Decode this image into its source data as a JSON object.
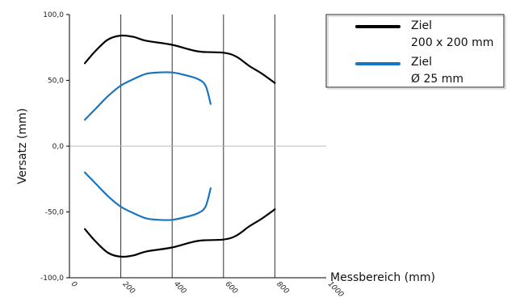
{
  "chart_data": {
    "type": "line",
    "title": "",
    "xlabel": "Messbereich (mm)",
    "ylabel": "Versatz (mm)",
    "xlim": [
      0,
      1000
    ],
    "ylim": [
      -100,
      100
    ],
    "x_ticks": [
      0,
      200,
      400,
      600,
      800,
      1000
    ],
    "y_ticks": [
      -100,
      -50,
      0,
      50,
      100
    ],
    "y_tick_labels": [
      "-100,0",
      "-50,0",
      "0,0",
      "50,0",
      "100,0"
    ],
    "x_tick_labels": [
      "0",
      "200",
      "400",
      "600",
      "800",
      "1000"
    ],
    "vertical_grid": true,
    "horizontal_grid": [
      0
    ],
    "legend_position": "top-right",
    "series": [
      {
        "legend": [
          "Ziel",
          "200 x 200 mm"
        ],
        "color": "#000000",
        "lines": [
          [
            [
              60,
              63
            ],
            [
              100,
              72
            ],
            [
              150,
              81
            ],
            [
              200,
              84
            ],
            [
              250,
              83
            ],
            [
              300,
              80
            ],
            [
              400,
              77
            ],
            [
              500,
              72
            ],
            [
              600,
              71
            ],
            [
              650,
              68
            ],
            [
              700,
              61
            ],
            [
              750,
              55
            ],
            [
              800,
              48
            ]
          ],
          [
            [
              60,
              -63
            ],
            [
              100,
              -72
            ],
            [
              150,
              -81
            ],
            [
              200,
              -84
            ],
            [
              250,
              -83
            ],
            [
              300,
              -80
            ],
            [
              400,
              -77
            ],
            [
              500,
              -72
            ],
            [
              600,
              -71
            ],
            [
              650,
              -68
            ],
            [
              700,
              -61
            ],
            [
              750,
              -55
            ],
            [
              800,
              -48
            ]
          ]
        ]
      },
      {
        "legend": [
          "Ziel",
          "Ø 25 mm"
        ],
        "color": "#1a74c0",
        "lines": [
          [
            [
              60,
              20
            ],
            [
              100,
              28
            ],
            [
              150,
              38
            ],
            [
              200,
              46
            ],
            [
              250,
              51
            ],
            [
              300,
              55
            ],
            [
              350,
              56
            ],
            [
              400,
              56
            ],
            [
              450,
              54
            ],
            [
              500,
              51
            ],
            [
              530,
              46
            ],
            [
              550,
              32
            ]
          ],
          [
            [
              60,
              -20
            ],
            [
              100,
              -28
            ],
            [
              150,
              -38
            ],
            [
              200,
              -46
            ],
            [
              250,
              -51
            ],
            [
              300,
              -55
            ],
            [
              350,
              -56
            ],
            [
              400,
              -56
            ],
            [
              450,
              -54
            ],
            [
              500,
              -51
            ],
            [
              530,
              -46
            ],
            [
              550,
              -32
            ]
          ]
        ]
      }
    ]
  }
}
